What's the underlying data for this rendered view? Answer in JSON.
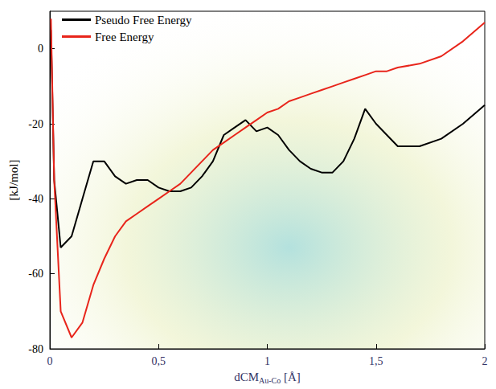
{
  "chart_data": {
    "type": "line",
    "x_label": {
      "text": "dCM",
      "subscript": "Au-Co",
      "suffix": " [Å]"
    },
    "y_label": "[kJ/mol]",
    "x": [
      0.005,
      0.02,
      0.05,
      0.1,
      0.15,
      0.2,
      0.25,
      0.3,
      0.35,
      0.4,
      0.45,
      0.5,
      0.55,
      0.6,
      0.65,
      0.7,
      0.75,
      0.8,
      0.85,
      0.9,
      0.95,
      1.0,
      1.05,
      1.1,
      1.15,
      1.2,
      1.25,
      1.3,
      1.35,
      1.4,
      1.45,
      1.5,
      1.55,
      1.6,
      1.7,
      1.8,
      1.9,
      2.0
    ],
    "series": [
      {
        "name": "Pseudo Free Energy",
        "color": "#000000",
        "values": [
          5,
          -35,
          -53,
          -50,
          -40,
          -30,
          -30,
          -34,
          -36,
          -35,
          -35,
          -37,
          -38,
          -38,
          -37,
          -34,
          -30,
          -23,
          -21,
          -19,
          -22,
          -21,
          -23,
          -27,
          -30,
          -32,
          -33,
          -33,
          -30,
          -24,
          -16,
          -20,
          -23,
          -26,
          -26,
          -24,
          -20,
          -15
        ]
      },
      {
        "name": "Free Energy",
        "color": "#e8251b",
        "values": [
          8,
          -35,
          -70,
          -77,
          -73,
          -63,
          -56,
          -50,
          -46,
          -44,
          -42,
          -40,
          -38,
          -36,
          -33,
          -30,
          -27,
          -25,
          -23,
          -21,
          -19,
          -17,
          -16,
          -14,
          -13,
          -12,
          -11,
          -10,
          -9,
          -8,
          -7,
          -6,
          -6,
          -5,
          -4,
          -2,
          2,
          7
        ]
      }
    ],
    "xlim": [
      0,
      2
    ],
    "xticks": [
      0,
      {
        "value": 0.5,
        "label": "0,5"
      },
      1,
      {
        "value": 1.5,
        "label": "1,5"
      },
      2
    ],
    "ylim": [
      -80,
      10
    ],
    "yticks": [
      -80,
      -60,
      -40,
      -20,
      0
    ],
    "grid": false,
    "legend": "upper left"
  }
}
